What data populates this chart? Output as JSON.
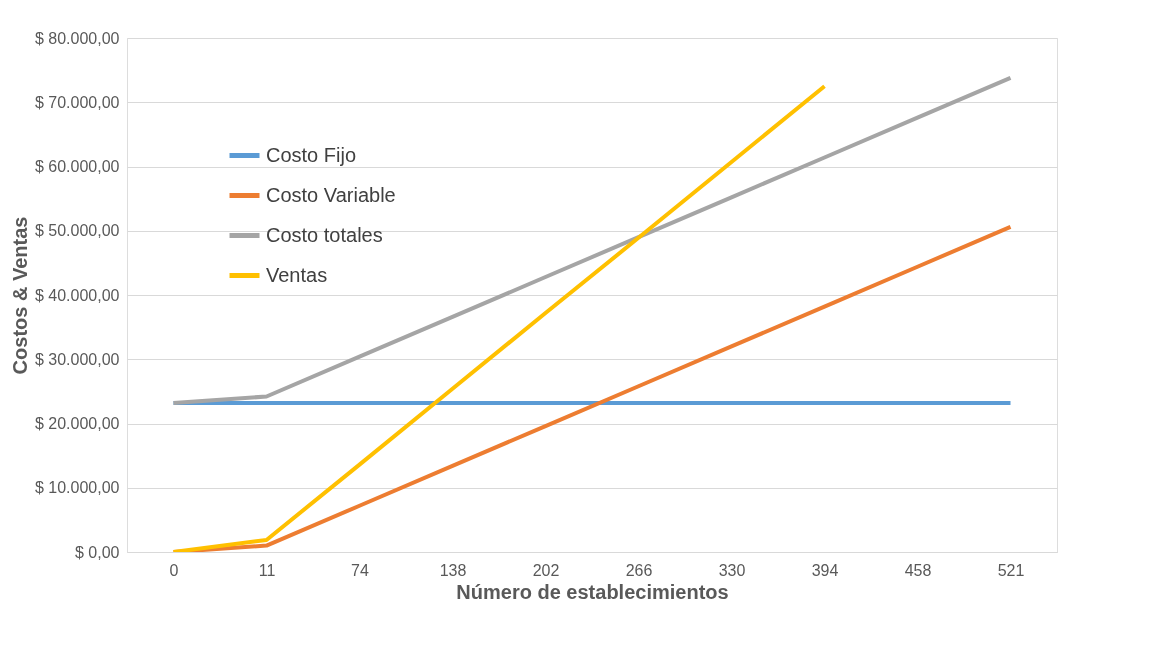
{
  "chart_data": {
    "type": "line",
    "xlabel": "Número de establecimientos",
    "ylabel": "Costos & Ventas",
    "categories": [
      "0",
      "11",
      "74",
      "138",
      "202",
      "266",
      "330",
      "394",
      "458",
      "521"
    ],
    "series": [
      {
        "name": "Costo Fijo",
        "color": "#5b9bd5",
        "values": [
          23200,
          23200,
          23200,
          23200,
          23200,
          23200,
          23200,
          23200,
          23200,
          23200
        ]
      },
      {
        "name": "Costo Variable",
        "color": "#ed7d31",
        "values": [
          0,
          1000,
          7200,
          13400,
          19600,
          25800,
          32000,
          38200,
          44400,
          50600
        ]
      },
      {
        "name": "Costo totales",
        "color": "#a5a5a5",
        "values": [
          23200,
          24200,
          30400,
          36600,
          42800,
          49000,
          55200,
          61400,
          67600,
          73800
        ]
      },
      {
        "name": "Ventas",
        "color": "#ffc000",
        "values": [
          0,
          1870,
          13600,
          25400,
          37200,
          48900,
          60700,
          72500,
          null,
          null
        ]
      }
    ],
    "ylim": [
      0,
      80000
    ],
    "yticks": [
      {
        "value": 0,
        "label": "$ 0,00"
      },
      {
        "value": 10000,
        "label": "$ 10.000,00"
      },
      {
        "value": 20000,
        "label": "$ 20.000,00"
      },
      {
        "value": 30000,
        "label": "$ 30.000,00"
      },
      {
        "value": 40000,
        "label": "$ 40.000,00"
      },
      {
        "value": 50000,
        "label": "$ 50.000,00"
      },
      {
        "value": 60000,
        "label": "$ 60.000,00"
      },
      {
        "value": 70000,
        "label": "$ 70.000,00"
      },
      {
        "value": 80000,
        "label": "$ 80.000,00"
      }
    ],
    "grid": "y",
    "legend": "top left",
    "marker": "none",
    "line_style": "solid"
  }
}
